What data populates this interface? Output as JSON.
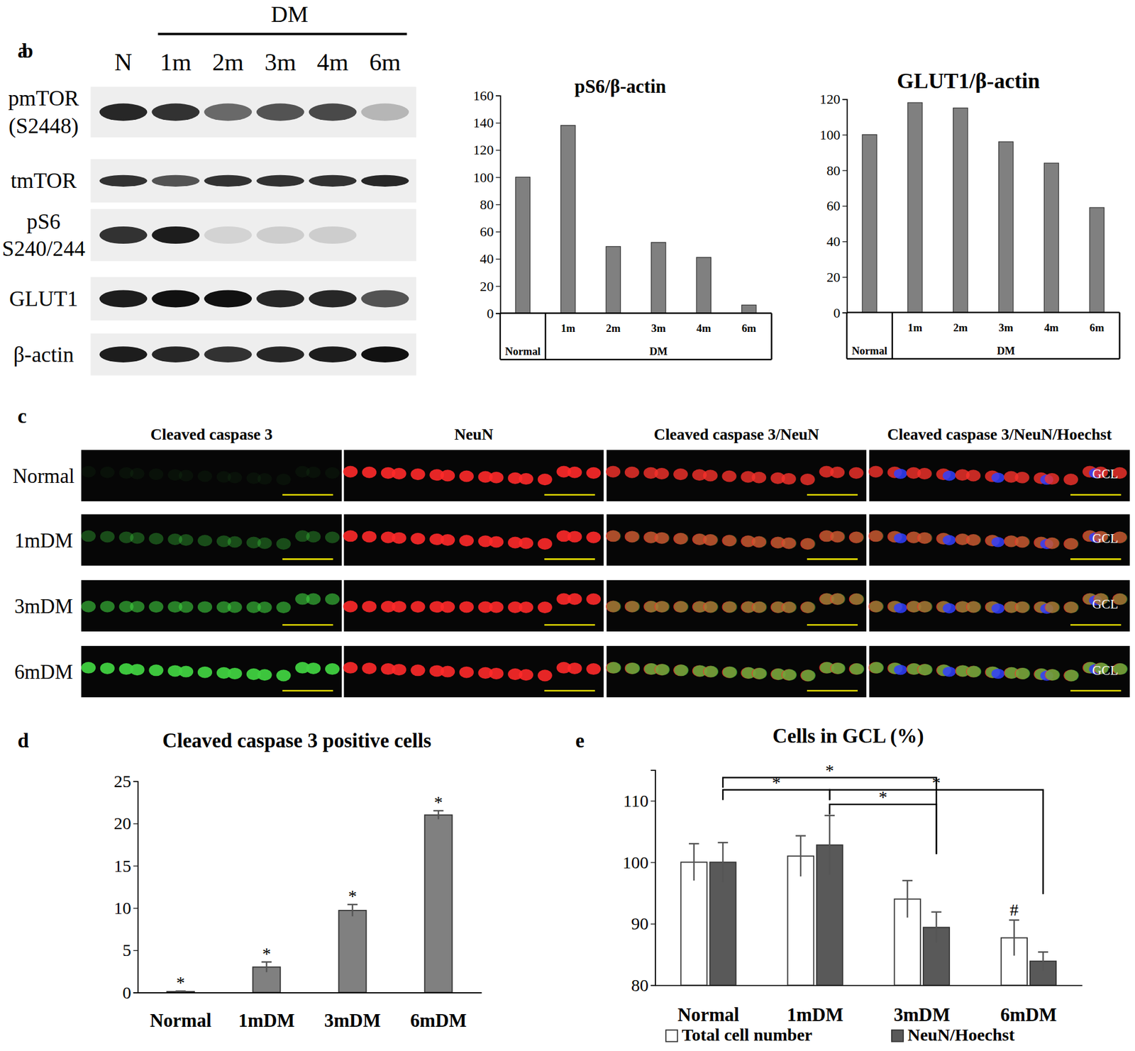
{
  "blot": {
    "panel": "a",
    "group_label": "DM",
    "lanes": [
      "N",
      "1m",
      "2m",
      "3m",
      "4m",
      "6m"
    ],
    "rows": [
      {
        "label": [
          "pmTOR",
          "(S2448)"
        ],
        "intensity": [
          0.9,
          0.85,
          0.6,
          0.7,
          0.75,
          0.25
        ]
      },
      {
        "label": [
          "tmTOR"
        ],
        "intensity": [
          0.85,
          0.7,
          0.85,
          0.85,
          0.85,
          0.9
        ]
      },
      {
        "label": [
          "pS6",
          "S240/244"
        ],
        "intensity": [
          0.85,
          0.95,
          0.12,
          0.15,
          0.15,
          0.0
        ]
      },
      {
        "label": [
          "GLUT1"
        ],
        "intensity": [
          0.95,
          1.0,
          1.0,
          0.9,
          0.9,
          0.7
        ]
      },
      {
        "label": [
          "β-actin"
        ],
        "intensity": [
          0.95,
          0.9,
          0.85,
          0.9,
          0.95,
          1.0
        ]
      }
    ]
  },
  "micrographs": {
    "panel": "c",
    "columns": [
      "Cleaved caspase 3",
      "NeuN",
      "Cleaved caspase 3/NeuN",
      "Cleaved caspase 3/NeuN/Hoechst"
    ],
    "rows": [
      "Normal",
      "1mDM",
      "3mDM",
      "6mDM"
    ],
    "layer_label": "GCL"
  },
  "chart_data": [
    {
      "type": "bar",
      "panel": "b",
      "title": "pS6/β-actin",
      "categories": [
        "Normal",
        "1m",
        "2m",
        "3m",
        "4m",
        "6m"
      ],
      "x_groups": [
        {
          "label": "DM",
          "categories": [
            "1m",
            "2m",
            "3m",
            "4m",
            "6m"
          ]
        }
      ],
      "values": [
        100,
        138,
        49,
        52,
        41,
        6
      ],
      "color": "#808080",
      "ylim": [
        0,
        160
      ],
      "yticks": [
        0,
        20,
        40,
        60,
        80,
        100,
        120,
        140,
        160
      ]
    },
    {
      "type": "bar",
      "title": "GLUT1/β-actin",
      "categories": [
        "Normal",
        "1m",
        "2m",
        "3m",
        "4m",
        "6m"
      ],
      "x_groups": [
        {
          "label": "DM",
          "categories": [
            "1m",
            "2m",
            "3m",
            "4m",
            "6m"
          ]
        }
      ],
      "values": [
        100,
        118,
        115,
        96,
        84,
        59
      ],
      "color": "#808080",
      "ylim": [
        0,
        120
      ],
      "yticks": [
        0,
        20,
        40,
        60,
        80,
        100,
        120
      ]
    },
    {
      "type": "bar",
      "panel": "d",
      "title": "Cleaved caspase 3 positive cells",
      "categories": [
        "Normal",
        "1mDM",
        "3mDM",
        "6mDM"
      ],
      "values": [
        0.1,
        3,
        9.7,
        21
      ],
      "errors": [
        0.05,
        0.6,
        0.7,
        0.5
      ],
      "bar_annotations": [
        "*",
        "*",
        "*",
        "*"
      ],
      "color": "#808080",
      "ylim": [
        0,
        25
      ],
      "yticks": [
        0,
        5,
        10,
        15,
        20,
        25
      ]
    },
    {
      "type": "bar",
      "panel": "e",
      "title": "Cells in GCL (%)",
      "categories": [
        "Normal",
        "1mDM",
        "3mDM",
        "6mDM"
      ],
      "series": [
        {
          "name": "Total cell number",
          "color": "#ffffff",
          "values": [
            100,
            101,
            94,
            87.7
          ],
          "errors": [
            3,
            3.3,
            3,
            2.9
          ]
        },
        {
          "name": "NeuN/Hoechst",
          "color": "#595959",
          "values": [
            100,
            102.8,
            89.4,
            83.9
          ],
          "errors": [
            3.2,
            4.8,
            2.5,
            1.5
          ]
        }
      ],
      "annotations": [
        {
          "series": "Total cell number",
          "category": "6mDM",
          "label": "#"
        }
      ],
      "comparisons": [
        {
          "series": "NeuN/Hoechst",
          "from": "Normal",
          "to": "3mDM",
          "label": "*"
        },
        {
          "series": "NeuN/Hoechst",
          "from": "Normal",
          "to": "1mDM",
          "label": "*"
        },
        {
          "series": "NeuN/Hoechst",
          "from": "1mDM",
          "to": "6mDM",
          "label": "*"
        },
        {
          "series": "NeuN/Hoechst",
          "from": "1mDM",
          "to": "3mDM",
          "label": "*"
        }
      ],
      "ylim": [
        80,
        115
      ],
      "yticks": [
        80,
        90,
        100,
        110
      ],
      "legend": "bottom"
    }
  ]
}
